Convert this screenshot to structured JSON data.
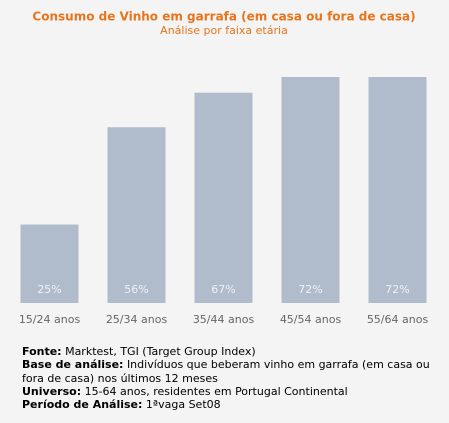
{
  "chart_data": {
    "type": "bar",
    "title": "Consumo de Vinho em garrafa (em casa ou fora de casa)",
    "subtitle": "Análise por faixa etária",
    "categories": [
      "15/24 anos",
      "25/34 anos",
      "35/44 anos",
      "45/54 anos",
      "55/64 anos"
    ],
    "values": [
      25,
      56,
      67,
      72,
      72
    ],
    "value_labels": [
      "25%",
      "56%",
      "67%",
      "72%",
      "72%"
    ],
    "color": "#b0bccb"
  },
  "notes": [
    {
      "label": "Fonte:",
      "text": "Marktest, TGI (Target Group Index)"
    },
    {
      "label": "Base de análise:",
      "text": "Indivíduos que beberam vinho em garrafa (em casa ou fora de casa) nos últimos 12 meses"
    },
    {
      "label": "Universo:",
      "text": "15-64 anos, residentes em Portugal Continental"
    },
    {
      "label": "Período de Análise:",
      "text": "1ªvaga Set08"
    }
  ]
}
